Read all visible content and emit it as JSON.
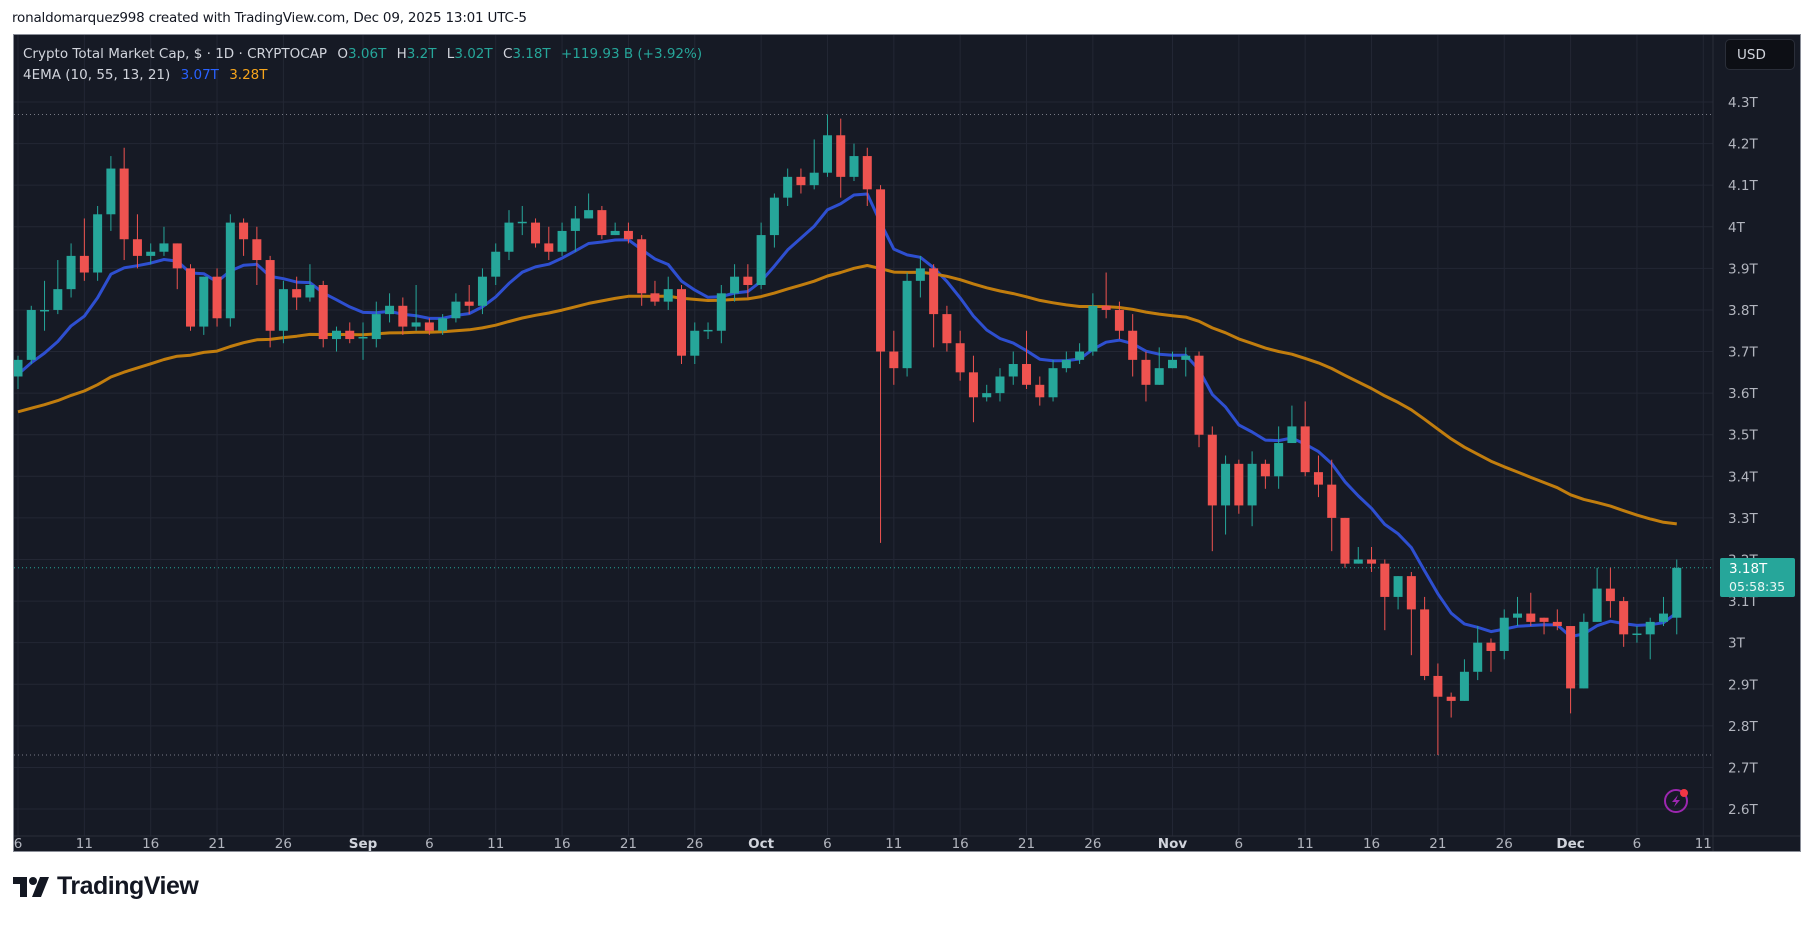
{
  "credit": "ronaldomarquez998 created with TradingView.com, Dec 09, 2025 13:01 UTC-5",
  "legend": {
    "symbol": "Crypto Total Market Cap, $ · 1D · CRYPTOCAP",
    "open_label": "O",
    "open": "3.06T",
    "high_label": "H",
    "high": "3.2T",
    "low_label": "L",
    "low": "3.02T",
    "close_label": "C",
    "close": "3.18T",
    "change": "+119.93 B (+3.92%)",
    "indicator": "4EMA (10, 55, 13, 21)",
    "ema_fast": "3.07T",
    "ema_slow": "3.28T"
  },
  "currency_button": "USD",
  "price_tag": {
    "price": "3.18T",
    "countdown": "05:58:35"
  },
  "brand": "TradingView",
  "colors": {
    "background": "#161a25",
    "grid": "#232734",
    "up": "#26a69a",
    "down": "#ef5350",
    "ema_fast": "#2e4fd0",
    "ema_slow": "#c17d0e",
    "axis_text": "#b2b5be"
  },
  "chart_data": {
    "type": "candlestick",
    "title": "Crypto Total Market Cap, $ · 1D · CRYPTOCAP",
    "xlabel": "",
    "ylabel": "",
    "ylim": [
      2.55,
      4.36
    ],
    "y_ticks": [
      "4.3T",
      "4.2T",
      "4.1T",
      "4T",
      "3.9T",
      "3.8T",
      "3.7T",
      "3.6T",
      "3.5T",
      "3.4T",
      "3.3T",
      "3.2T",
      "3.1T",
      "3T",
      "2.9T",
      "2.8T",
      "2.7T",
      "2.6T"
    ],
    "y_tick_values": [
      4.3,
      4.2,
      4.1,
      4.0,
      3.9,
      3.8,
      3.7,
      3.6,
      3.5,
      3.4,
      3.3,
      3.2,
      3.1,
      3.0,
      2.9,
      2.8,
      2.7,
      2.6
    ],
    "x_ticks": [
      {
        "label": "6",
        "day": 0
      },
      {
        "label": "11",
        "day": 5
      },
      {
        "label": "16",
        "day": 10
      },
      {
        "label": "21",
        "day": 15
      },
      {
        "label": "26",
        "day": 20
      },
      {
        "label": "Sep",
        "day": 26,
        "bold": true
      },
      {
        "label": "6",
        "day": 31
      },
      {
        "label": "11",
        "day": 36
      },
      {
        "label": "16",
        "day": 41
      },
      {
        "label": "21",
        "day": 46
      },
      {
        "label": "26",
        "day": 51
      },
      {
        "label": "Oct",
        "day": 56,
        "bold": true
      },
      {
        "label": "6",
        "day": 61
      },
      {
        "label": "11",
        "day": 66
      },
      {
        "label": "16",
        "day": 71
      },
      {
        "label": "21",
        "day": 76
      },
      {
        "label": "26",
        "day": 81
      },
      {
        "label": "Nov",
        "day": 87,
        "bold": true
      },
      {
        "label": "6",
        "day": 92
      },
      {
        "label": "11",
        "day": 97
      },
      {
        "label": "16",
        "day": 102
      },
      {
        "label": "21",
        "day": 107
      },
      {
        "label": "26",
        "day": 112
      },
      {
        "label": "Dec",
        "day": 117,
        "bold": true
      },
      {
        "label": "6",
        "day": 122
      },
      {
        "label": "11",
        "day": 127
      }
    ],
    "start_date": "Aug 6",
    "end_date": "Dec 9",
    "dotted_high": 4.27,
    "dotted_low": 2.73,
    "last_price": 3.18,
    "series": [
      {
        "name": "Crypto Total Market Cap",
        "type": "ohlc",
        "ohlc": [
          [
            3.64,
            3.69,
            3.61,
            3.68
          ],
          [
            3.68,
            3.81,
            3.67,
            3.8
          ],
          [
            3.8,
            3.87,
            3.75,
            3.8
          ],
          [
            3.8,
            3.92,
            3.79,
            3.85
          ],
          [
            3.85,
            3.96,
            3.83,
            3.93
          ],
          [
            3.93,
            4.02,
            3.87,
            3.89
          ],
          [
            3.89,
            4.05,
            3.87,
            4.03
          ],
          [
            4.03,
            4.17,
            3.99,
            4.14
          ],
          [
            4.14,
            4.19,
            3.92,
            3.97
          ],
          [
            3.97,
            4.03,
            3.9,
            3.93
          ],
          [
            3.93,
            3.96,
            3.91,
            3.94
          ],
          [
            3.94,
            4.0,
            3.93,
            3.96
          ],
          [
            3.96,
            3.96,
            3.85,
            3.9
          ],
          [
            3.9,
            3.91,
            3.75,
            3.76
          ],
          [
            3.76,
            3.88,
            3.74,
            3.88
          ],
          [
            3.88,
            3.9,
            3.76,
            3.78
          ],
          [
            3.78,
            4.03,
            3.76,
            4.01
          ],
          [
            4.01,
            4.02,
            3.93,
            3.97
          ],
          [
            3.97,
            4.0,
            3.86,
            3.92
          ],
          [
            3.92,
            3.93,
            3.71,
            3.75
          ],
          [
            3.75,
            3.87,
            3.72,
            3.85
          ],
          [
            3.85,
            3.88,
            3.8,
            3.83
          ],
          [
            3.83,
            3.91,
            3.82,
            3.86
          ],
          [
            3.86,
            3.87,
            3.71,
            3.73
          ],
          [
            3.73,
            3.76,
            3.7,
            3.75
          ],
          [
            3.75,
            3.77,
            3.72,
            3.73
          ],
          [
            3.735,
            3.77,
            3.68,
            3.735
          ],
          [
            3.73,
            3.82,
            3.71,
            3.79
          ],
          [
            3.79,
            3.84,
            3.77,
            3.81
          ],
          [
            3.81,
            3.83,
            3.74,
            3.76
          ],
          [
            3.76,
            3.86,
            3.75,
            3.77
          ],
          [
            3.77,
            3.78,
            3.74,
            3.75
          ],
          [
            3.75,
            3.79,
            3.74,
            3.78
          ],
          [
            3.78,
            3.84,
            3.77,
            3.82
          ],
          [
            3.82,
            3.86,
            3.79,
            3.81
          ],
          [
            3.81,
            3.9,
            3.79,
            3.88
          ],
          [
            3.88,
            3.96,
            3.86,
            3.94
          ],
          [
            3.94,
            4.04,
            3.92,
            4.01
          ],
          [
            4.01,
            4.05,
            3.98,
            4.012
          ],
          [
            4.01,
            4.02,
            3.95,
            3.96
          ],
          [
            3.96,
            4.0,
            3.92,
            3.94
          ],
          [
            3.94,
            4.01,
            3.93,
            3.99
          ],
          [
            3.99,
            4.05,
            3.94,
            4.02
          ],
          [
            4.02,
            4.08,
            4.02,
            4.04
          ],
          [
            4.04,
            4.05,
            3.97,
            3.98
          ],
          [
            3.98,
            4.01,
            3.98,
            3.99
          ],
          [
            3.99,
            4.01,
            3.96,
            3.97
          ],
          [
            3.97,
            3.98,
            3.81,
            3.84
          ],
          [
            3.84,
            3.87,
            3.81,
            3.82
          ],
          [
            3.82,
            3.88,
            3.8,
            3.85
          ],
          [
            3.85,
            3.86,
            3.67,
            3.69
          ],
          [
            3.69,
            3.77,
            3.67,
            3.75
          ],
          [
            3.75,
            3.77,
            3.73,
            3.752
          ],
          [
            3.75,
            3.86,
            3.72,
            3.84
          ],
          [
            3.84,
            3.91,
            3.82,
            3.88
          ],
          [
            3.88,
            3.91,
            3.83,
            3.86
          ],
          [
            3.86,
            4.01,
            3.85,
            3.98
          ],
          [
            3.98,
            4.08,
            3.95,
            4.07
          ],
          [
            4.07,
            4.14,
            4.05,
            4.12
          ],
          [
            4.12,
            4.14,
            4.08,
            4.1
          ],
          [
            4.1,
            4.21,
            4.09,
            4.13
          ],
          [
            4.13,
            4.27,
            4.12,
            4.22
          ],
          [
            4.22,
            4.26,
            4.07,
            4.12
          ],
          [
            4.12,
            4.2,
            4.11,
            4.17
          ],
          [
            4.17,
            4.19,
            4.05,
            4.09
          ],
          [
            4.09,
            4.1,
            3.24,
            3.7
          ],
          [
            3.7,
            3.75,
            3.62,
            3.66
          ],
          [
            3.66,
            3.89,
            3.64,
            3.87
          ],
          [
            3.87,
            3.93,
            3.83,
            3.9
          ],
          [
            3.9,
            3.91,
            3.71,
            3.79
          ],
          [
            3.79,
            3.81,
            3.7,
            3.72
          ],
          [
            3.72,
            3.75,
            3.63,
            3.65
          ],
          [
            3.65,
            3.69,
            3.53,
            3.59
          ],
          [
            3.59,
            3.62,
            3.58,
            3.6
          ],
          [
            3.6,
            3.66,
            3.58,
            3.64
          ],
          [
            3.64,
            3.7,
            3.62,
            3.67
          ],
          [
            3.67,
            3.75,
            3.61,
            3.62
          ],
          [
            3.62,
            3.64,
            3.57,
            3.59
          ],
          [
            3.59,
            3.68,
            3.58,
            3.66
          ],
          [
            3.66,
            3.7,
            3.65,
            3.68
          ],
          [
            3.68,
            3.72,
            3.67,
            3.7
          ],
          [
            3.7,
            3.84,
            3.69,
            3.81
          ],
          [
            3.81,
            3.89,
            3.78,
            3.8
          ],
          [
            3.8,
            3.82,
            3.73,
            3.75
          ],
          [
            3.75,
            3.79,
            3.64,
            3.68
          ],
          [
            3.68,
            3.7,
            3.58,
            3.62
          ],
          [
            3.62,
            3.71,
            3.62,
            3.66
          ],
          [
            3.66,
            3.7,
            3.66,
            3.68
          ],
          [
            3.68,
            3.71,
            3.64,
            3.69
          ],
          [
            3.69,
            3.7,
            3.47,
            3.5
          ],
          [
            3.5,
            3.52,
            3.22,
            3.33
          ],
          [
            3.33,
            3.45,
            3.26,
            3.43
          ],
          [
            3.43,
            3.44,
            3.31,
            3.33
          ],
          [
            3.33,
            3.46,
            3.28,
            3.43
          ],
          [
            3.43,
            3.44,
            3.37,
            3.4
          ],
          [
            3.4,
            3.52,
            3.37,
            3.48
          ],
          [
            3.48,
            3.57,
            3.49,
            3.52
          ],
          [
            3.52,
            3.58,
            3.4,
            3.41
          ],
          [
            3.41,
            3.45,
            3.35,
            3.38
          ],
          [
            3.38,
            3.44,
            3.22,
            3.3
          ],
          [
            3.3,
            3.3,
            3.18,
            3.19
          ],
          [
            3.19,
            3.23,
            3.19,
            3.2
          ],
          [
            3.2,
            3.23,
            3.17,
            3.19
          ],
          [
            3.19,
            3.2,
            3.03,
            3.11
          ],
          [
            3.11,
            3.16,
            3.08,
            3.16
          ],
          [
            3.16,
            3.17,
            2.97,
            3.08
          ],
          [
            3.08,
            3.11,
            2.91,
            2.92
          ],
          [
            2.92,
            2.95,
            2.73,
            2.87
          ],
          [
            2.87,
            2.88,
            2.82,
            2.86
          ],
          [
            2.86,
            2.96,
            2.86,
            2.93
          ],
          [
            2.93,
            3.04,
            2.91,
            3.0
          ],
          [
            3.0,
            3.01,
            2.93,
            2.98
          ],
          [
            2.98,
            3.08,
            2.96,
            3.06
          ],
          [
            3.06,
            3.11,
            3.04,
            3.07
          ],
          [
            3.07,
            3.12,
            3.04,
            3.05
          ],
          [
            3.06,
            3.06,
            3.02,
            3.05
          ],
          [
            3.05,
            3.08,
            3.03,
            3.04
          ],
          [
            3.04,
            3.04,
            2.83,
            2.89
          ],
          [
            2.89,
            3.07,
            2.89,
            3.05
          ],
          [
            3.05,
            3.18,
            3.05,
            3.13
          ],
          [
            3.13,
            3.18,
            3.06,
            3.1
          ],
          [
            3.1,
            3.11,
            2.99,
            3.02
          ],
          [
            3.02,
            3.04,
            3.0,
            3.022
          ],
          [
            3.02,
            3.06,
            2.96,
            3.05
          ],
          [
            3.05,
            3.11,
            3.04,
            3.07
          ],
          [
            3.06,
            3.2,
            3.02,
            3.18
          ]
        ]
      },
      {
        "name": "EMA 10",
        "type": "ema",
        "period": 10,
        "seed": 3.645,
        "color": "#2e4fd0"
      },
      {
        "name": "EMA 55",
        "type": "ema",
        "period": 55,
        "seed": 3.555,
        "color": "#c17d0e"
      }
    ]
  }
}
